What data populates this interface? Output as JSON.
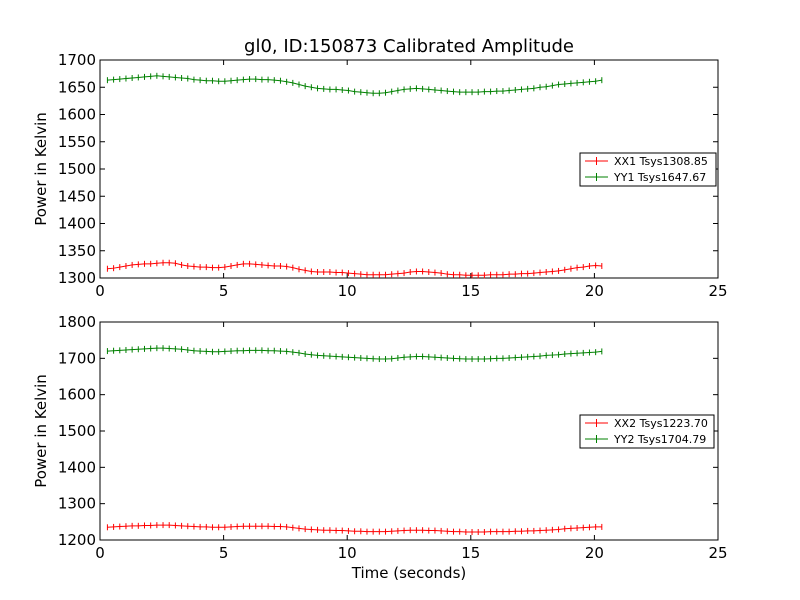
{
  "chart_data": [
    {
      "type": "line",
      "title": "gl0, ID:150873 Calibrated Amplitude",
      "xlabel": "",
      "ylabel": "Power in Kelvin",
      "xlim": [
        0,
        25
      ],
      "ylim": [
        1300,
        1700
      ],
      "xticks": [
        0,
        5,
        10,
        15,
        20,
        25
      ],
      "yticks": [
        1300,
        1350,
        1400,
        1450,
        1500,
        1550,
        1600,
        1650,
        1700
      ],
      "legend_position": "center-right",
      "x_start": 0.3,
      "x_step": 0.25,
      "series": [
        {
          "name": "XX1 Tsys1308.85",
          "color": "#ff0000",
          "values": [
            1317,
            1318,
            1320,
            1322,
            1324,
            1325,
            1326,
            1326,
            1327,
            1328,
            1328,
            1327,
            1324,
            1322,
            1321,
            1320,
            1320,
            1319,
            1319,
            1320,
            1322,
            1324,
            1326,
            1326,
            1325,
            1324,
            1323,
            1322,
            1322,
            1321,
            1319,
            1316,
            1314,
            1312,
            1311,
            1311,
            1311,
            1310,
            1310,
            1309,
            1308,
            1307,
            1306,
            1306,
            1306,
            1306,
            1307,
            1308,
            1309,
            1311,
            1312,
            1312,
            1311,
            1310,
            1309,
            1307,
            1306,
            1306,
            1305,
            1305,
            1305,
            1305,
            1306,
            1306,
            1306,
            1307,
            1307,
            1308,
            1308,
            1309,
            1310,
            1311,
            1312,
            1313,
            1315,
            1317,
            1319,
            1320,
            1322,
            1323,
            1322
          ]
        },
        {
          "name": "YY1 Tsys1647.67",
          "color": "#008000",
          "values": [
            1663,
            1664,
            1665,
            1666,
            1667,
            1668,
            1669,
            1670,
            1671,
            1670,
            1669,
            1668,
            1667,
            1666,
            1664,
            1663,
            1662,
            1662,
            1661,
            1661,
            1662,
            1663,
            1664,
            1665,
            1665,
            1664,
            1664,
            1663,
            1662,
            1660,
            1658,
            1655,
            1652,
            1650,
            1648,
            1647,
            1646,
            1646,
            1645,
            1644,
            1642,
            1641,
            1640,
            1639,
            1639,
            1640,
            1642,
            1644,
            1646,
            1647,
            1648,
            1647,
            1646,
            1645,
            1644,
            1643,
            1642,
            1641,
            1641,
            1641,
            1641,
            1642,
            1642,
            1643,
            1643,
            1644,
            1645,
            1646,
            1647,
            1648,
            1650,
            1651,
            1653,
            1655,
            1656,
            1657,
            1658,
            1659,
            1660,
            1661,
            1663
          ]
        }
      ]
    },
    {
      "type": "line",
      "title": "",
      "xlabel": "Time (seconds)",
      "ylabel": "Power in Kelvin",
      "xlim": [
        0,
        25
      ],
      "ylim": [
        1200,
        1800
      ],
      "xticks": [
        0,
        5,
        10,
        15,
        20,
        25
      ],
      "yticks": [
        1200,
        1300,
        1400,
        1500,
        1600,
        1700,
        1800
      ],
      "legend_position": "center-right",
      "x_start": 0.3,
      "x_step": 0.25,
      "series": [
        {
          "name": "XX2 Tsys1223.70",
          "color": "#ff0000",
          "values": [
            1235,
            1236,
            1237,
            1238,
            1239,
            1239,
            1240,
            1240,
            1241,
            1241,
            1241,
            1240,
            1239,
            1238,
            1237,
            1236,
            1236,
            1235,
            1235,
            1235,
            1236,
            1237,
            1238,
            1238,
            1238,
            1238,
            1238,
            1237,
            1237,
            1236,
            1234,
            1232,
            1230,
            1229,
            1228,
            1227,
            1227,
            1226,
            1226,
            1225,
            1224,
            1224,
            1223,
            1223,
            1223,
            1223,
            1224,
            1225,
            1226,
            1227,
            1227,
            1227,
            1226,
            1226,
            1225,
            1224,
            1223,
            1223,
            1222,
            1222,
            1222,
            1222,
            1223,
            1223,
            1223,
            1223,
            1224,
            1224,
            1225,
            1225,
            1226,
            1227,
            1228,
            1229,
            1231,
            1232,
            1233,
            1234,
            1235,
            1236,
            1236
          ]
        },
        {
          "name": "YY2 Tsys1704.79",
          "color": "#008000",
          "values": [
            1720,
            1721,
            1722,
            1723,
            1724,
            1725,
            1726,
            1727,
            1728,
            1728,
            1727,
            1726,
            1725,
            1723,
            1721,
            1720,
            1719,
            1718,
            1718,
            1719,
            1720,
            1721,
            1721,
            1722,
            1722,
            1722,
            1721,
            1721,
            1720,
            1719,
            1717,
            1715,
            1712,
            1710,
            1708,
            1707,
            1706,
            1705,
            1704,
            1703,
            1702,
            1701,
            1700,
            1699,
            1698,
            1698,
            1699,
            1701,
            1703,
            1704,
            1705,
            1705,
            1704,
            1703,
            1702,
            1701,
            1700,
            1699,
            1698,
            1698,
            1698,
            1698,
            1699,
            1700,
            1700,
            1701,
            1702,
            1703,
            1704,
            1705,
            1706,
            1708,
            1709,
            1710,
            1712,
            1713,
            1714,
            1715,
            1716,
            1717,
            1719
          ]
        }
      ]
    }
  ]
}
